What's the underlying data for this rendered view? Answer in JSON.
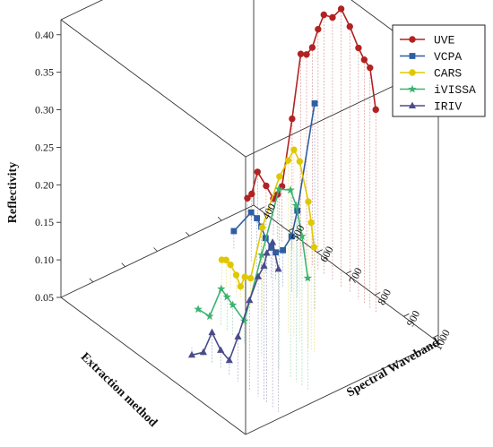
{
  "chart_data": {
    "type": "line",
    "subtype": "3d-waterfall",
    "title": "",
    "xlabel": "Spectral Waveband",
    "ylabel": "Extraction method",
    "zlabel": "Reflectivity",
    "xticks": [
      400,
      500,
      600,
      700,
      800,
      900,
      1000
    ],
    "zticks": [
      0.05,
      0.1,
      0.15,
      0.2,
      0.25,
      0.3,
      0.35,
      0.4
    ],
    "xlim": [
      380,
      1020
    ],
    "zlim": [
      0.05,
      0.42
    ],
    "grid": false,
    "legend_position": "top-right",
    "series": [
      {
        "name": "UVE",
        "color": "#b22222",
        "marker": "circle",
        "x": [
          405,
          420,
          440,
          470,
          495,
          510,
          525,
          560,
          590,
          610,
          630,
          650,
          670,
          700,
          730,
          760,
          790,
          810,
          830,
          850
        ],
        "y": [
          0.075,
          0.085,
          0.12,
          0.11,
          0.1,
          0.11,
          0.125,
          0.225,
          0.32,
          0.325,
          0.34,
          0.37,
          0.395,
          0.4,
          0.42,
          0.405,
          0.385,
          0.375,
          0.37,
          0.32
        ]
      },
      {
        "name": "VCPA",
        "color": "#2e5fa3",
        "marker": "square",
        "x": [
          480,
          540,
          560,
          575,
          590,
          610,
          625,
          650,
          680,
          700,
          760
        ],
        "y": [
          0.075,
          0.117,
          0.115,
          0.108,
          0.097,
          0.09,
          0.088,
          0.098,
          0.125,
          0.165,
          0.325
        ]
      },
      {
        "name": "CARS",
        "color": "#e0c800",
        "marker": "circle",
        "x": [
          560,
          575,
          590,
          610,
          625,
          640,
          660,
          700,
          760,
          790,
          810,
          830,
          860,
          870,
          880
        ],
        "y": [
          0.082,
          0.086,
          0.084,
          0.076,
          0.065,
          0.082,
          0.086,
          0.165,
          0.25,
          0.28,
          0.3,
          0.29,
          0.245,
          0.22,
          0.19
        ]
      },
      {
        "name": "iVISSA",
        "color": "#3cb371",
        "marker": "star",
        "x": [
          600,
          640,
          680,
          700,
          720,
          760,
          820,
          880,
          920,
          940,
          960,
          980
        ],
        "y": [
          0.05,
          0.052,
          0.1,
          0.095,
          0.09,
          0.08,
          0.185,
          0.29,
          0.3,
          0.285,
          0.25,
          0.2
        ]
      },
      {
        "name": "IRIV",
        "color": "#4b4b8c",
        "marker": "triangle",
        "x": [
          700,
          740,
          770,
          800,
          830,
          860,
          900,
          930,
          950,
          960,
          980,
          1000
        ],
        "y": [
          0.04,
          0.055,
          0.09,
          0.075,
          0.07,
          0.11,
          0.17,
          0.21,
          0.23,
          0.25,
          0.27,
          0.24
        ]
      }
    ]
  }
}
